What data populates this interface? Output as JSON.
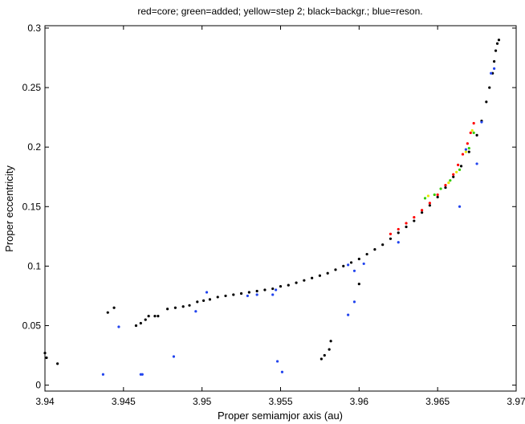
{
  "chart_data": {
    "type": "scatter",
    "title": "red=core; green=added; yellow=step 2; black=backgr.; blue=reson.",
    "xlabel": "Proper semiamjor axis (au)",
    "ylabel": "Proper eccentricity",
    "xlim": [
      3.94,
      3.97
    ],
    "ylim": [
      -0.005,
      0.302
    ],
    "x_ticks": [
      3.94,
      3.945,
      3.95,
      3.955,
      3.96,
      3.965,
      3.97
    ],
    "x_tick_labels": [
      "3.94",
      "3.945",
      "3.95",
      "3.955",
      "3.96",
      "3.965",
      "3.97"
    ],
    "y_ticks": [
      0,
      0.05,
      0.1,
      0.15,
      0.2,
      0.25,
      0.3
    ],
    "y_tick_labels": [
      "0",
      "0.05",
      "0.1",
      "0.15",
      "0.2",
      "0.25",
      "0.3"
    ],
    "grid": false,
    "series": [
      {
        "name": "backgr.",
        "color": "#000000",
        "points": [
          [
            3.94,
            0.027
          ],
          [
            3.9401,
            0.023
          ],
          [
            3.9408,
            0.018
          ],
          [
            3.944,
            0.061
          ],
          [
            3.9444,
            0.065
          ],
          [
            3.9458,
            0.05
          ],
          [
            3.9461,
            0.052
          ],
          [
            3.9464,
            0.055
          ],
          [
            3.9466,
            0.058
          ],
          [
            3.947,
            0.058
          ],
          [
            3.9472,
            0.058
          ],
          [
            3.9478,
            0.064
          ],
          [
            3.9483,
            0.065
          ],
          [
            3.9488,
            0.066
          ],
          [
            3.9492,
            0.067
          ],
          [
            3.9497,
            0.07
          ],
          [
            3.9501,
            0.071
          ],
          [
            3.9505,
            0.072
          ],
          [
            3.951,
            0.074
          ],
          [
            3.9515,
            0.075
          ],
          [
            3.952,
            0.076
          ],
          [
            3.9525,
            0.077
          ],
          [
            3.953,
            0.078
          ],
          [
            3.9535,
            0.079
          ],
          [
            3.954,
            0.08
          ],
          [
            3.9545,
            0.081
          ],
          [
            3.955,
            0.083
          ],
          [
            3.9555,
            0.084
          ],
          [
            3.956,
            0.086
          ],
          [
            3.9565,
            0.088
          ],
          [
            3.957,
            0.09
          ],
          [
            3.9575,
            0.092
          ],
          [
            3.958,
            0.094
          ],
          [
            3.9585,
            0.097
          ],
          [
            3.959,
            0.1
          ],
          [
            3.9595,
            0.103
          ],
          [
            3.96,
            0.106
          ],
          [
            3.9605,
            0.11
          ],
          [
            3.961,
            0.114
          ],
          [
            3.9615,
            0.118
          ],
          [
            3.962,
            0.123
          ],
          [
            3.9625,
            0.128
          ],
          [
            3.963,
            0.133
          ],
          [
            3.9635,
            0.138
          ],
          [
            3.964,
            0.145
          ],
          [
            3.9645,
            0.151
          ],
          [
            3.965,
            0.158
          ],
          [
            3.9655,
            0.166
          ],
          [
            3.966,
            0.175
          ],
          [
            3.9665,
            0.184
          ],
          [
            3.967,
            0.196
          ],
          [
            3.9675,
            0.21
          ],
          [
            3.9678,
            0.222
          ],
          [
            3.9681,
            0.238
          ],
          [
            3.9683,
            0.25
          ],
          [
            3.9685,
            0.262
          ],
          [
            3.9686,
            0.272
          ],
          [
            3.9687,
            0.281
          ],
          [
            3.9688,
            0.287
          ],
          [
            3.9689,
            0.29
          ],
          [
            3.9576,
            0.022
          ],
          [
            3.9578,
            0.025
          ],
          [
            3.9581,
            0.03
          ],
          [
            3.9582,
            0.037
          ],
          [
            3.96,
            0.085
          ]
        ]
      },
      {
        "name": "core",
        "color": "#ff0000",
        "points": [
          [
            3.962,
            0.127
          ],
          [
            3.9625,
            0.131
          ],
          [
            3.963,
            0.136
          ],
          [
            3.9635,
            0.141
          ],
          [
            3.964,
            0.147
          ],
          [
            3.9645,
            0.153
          ],
          [
            3.965,
            0.16
          ],
          [
            3.9655,
            0.168
          ],
          [
            3.966,
            0.177
          ],
          [
            3.9663,
            0.185
          ],
          [
            3.9666,
            0.194
          ],
          [
            3.9669,
            0.203
          ],
          [
            3.9671,
            0.212
          ],
          [
            3.9673,
            0.22
          ]
        ]
      },
      {
        "name": "added",
        "color": "#33cc00",
        "points": [
          [
            3.9642,
            0.157
          ],
          [
            3.9648,
            0.16
          ],
          [
            3.9652,
            0.165
          ],
          [
            3.9658,
            0.172
          ],
          [
            3.9664,
            0.181
          ],
          [
            3.967,
            0.199
          ],
          [
            3.9673,
            0.212
          ]
        ]
      },
      {
        "name": "step 2",
        "color": "#e8e800",
        "points": [
          [
            3.9644,
            0.159
          ],
          [
            3.9657,
            0.17
          ],
          [
            3.9662,
            0.179
          ],
          [
            3.9668,
            0.196
          ],
          [
            3.9672,
            0.214
          ]
        ]
      },
      {
        "name": "reson.",
        "color": "#2244ee",
        "points": [
          [
            3.9447,
            0.049
          ],
          [
            3.9437,
            0.009
          ],
          [
            3.9461,
            0.009
          ],
          [
            3.9462,
            0.009
          ],
          [
            3.9482,
            0.024
          ],
          [
            3.9496,
            0.062
          ],
          [
            3.9503,
            0.078
          ],
          [
            3.9529,
            0.075
          ],
          [
            3.9535,
            0.076
          ],
          [
            3.9545,
            0.076
          ],
          [
            3.9547,
            0.08
          ],
          [
            3.9548,
            0.02
          ],
          [
            3.9551,
            0.011
          ],
          [
            3.9593,
            0.059
          ],
          [
            3.9597,
            0.07
          ],
          [
            3.9593,
            0.101
          ],
          [
            3.9597,
            0.096
          ],
          [
            3.9603,
            0.102
          ],
          [
            3.9664,
            0.15
          ],
          [
            3.9675,
            0.186
          ],
          [
            3.9684,
            0.262
          ],
          [
            3.9686,
            0.266
          ],
          [
            3.9678,
            0.221
          ],
          [
            3.9625,
            0.12
          ],
          [
            3.9668,
            0.198
          ]
        ]
      }
    ]
  }
}
